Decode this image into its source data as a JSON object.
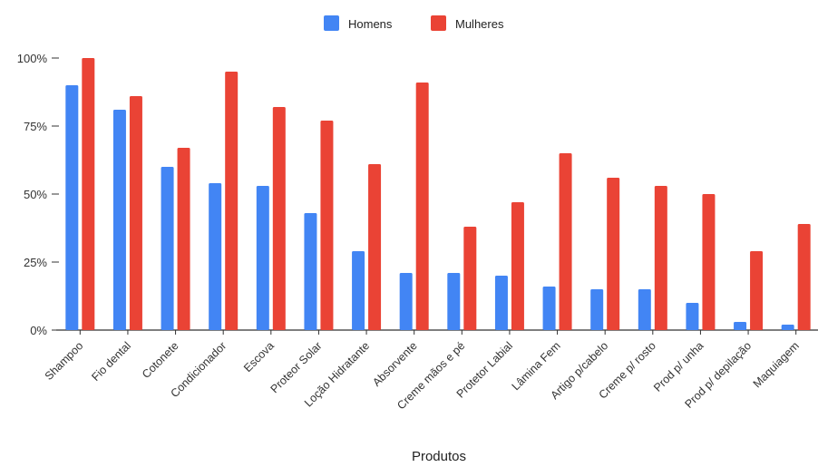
{
  "chart_data": {
    "type": "bar",
    "categories": [
      "Shampoo",
      "Fio dental",
      "Cotonete",
      "Condicionador",
      "Escova",
      "Proteor Solar",
      "Loção Hidratante",
      "Absorvente",
      "Creme mãos e pé",
      "Protetor Labial",
      "Lâmina Fem",
      "Artigo p/cabelo",
      "Creme p/ rosto",
      "Prod p/ unha",
      "Prod p/ depilação",
      "Maquiagem"
    ],
    "series": [
      {
        "name": "Homens",
        "color": "#4285f4",
        "values": [
          90,
          81,
          60,
          54,
          53,
          43,
          29,
          21,
          21,
          20,
          16,
          15,
          15,
          10,
          3,
          2
        ]
      },
      {
        "name": "Mulheres",
        "color": "#ea4335",
        "values": [
          100,
          86,
          67,
          95,
          82,
          77,
          61,
          91,
          38,
          47,
          65,
          56,
          53,
          50,
          29,
          39
        ]
      }
    ],
    "title": "",
    "xlabel": "Produtos",
    "ylabel": "",
    "ylim": [
      0,
      100
    ],
    "yticks": [
      "0%",
      "25%",
      "50%",
      "75%",
      "100%"
    ],
    "ytick_values": [
      0,
      25,
      50,
      75,
      100
    ],
    "grid": false,
    "legend_position": "top-center"
  }
}
